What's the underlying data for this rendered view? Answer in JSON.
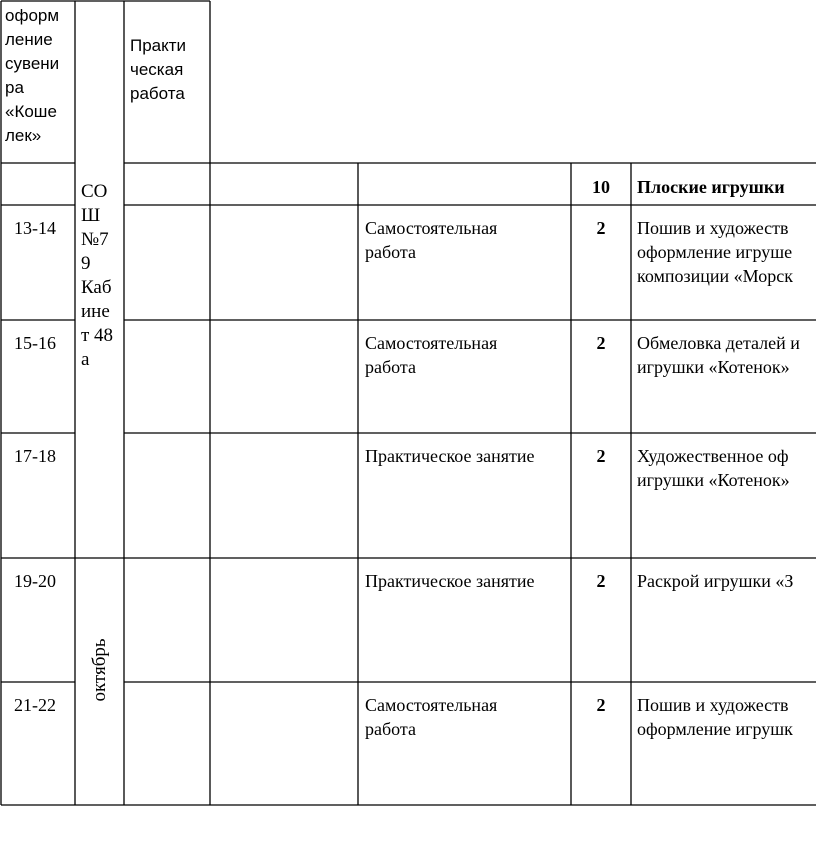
{
  "top": {
    "topic": "оформ\nление\nсувени\nра\n«Коше\nлек»",
    "place": "СО\nШ\n№7\n9\nКаб\nине\nт 48\nа",
    "form": "Практи\nческая\nработа"
  },
  "section": {
    "hours": "10",
    "title": "Плоские игрушки"
  },
  "rows": [
    {
      "lesson": "13-14",
      "form": "Самостоятельная\nработа",
      "hours": "2",
      "topic": "Пошив и художеств\nоформление игруше\nкомпозиции «Морск"
    },
    {
      "lesson": "15-16",
      "form": "Самостоятельная\nработа",
      "hours": "2",
      "topic": "Обмеловка деталей и\nигрушки «Котенок»"
    },
    {
      "lesson": "17-18",
      "form": "Практическое занятие",
      "hours": "2",
      "topic": "Художественное оф\nигрушки «Котенок»"
    },
    {
      "lesson": "19-20",
      "form": "Практическое занятие",
      "hours": "2",
      "topic": "Раскрой игрушки «З"
    },
    {
      "lesson": "21-22",
      "form": "Самостоятельная\nработа",
      "hours": "2",
      "topic": "Пошив и художеств\nоформление игрушк"
    }
  ],
  "month": "октябрь"
}
